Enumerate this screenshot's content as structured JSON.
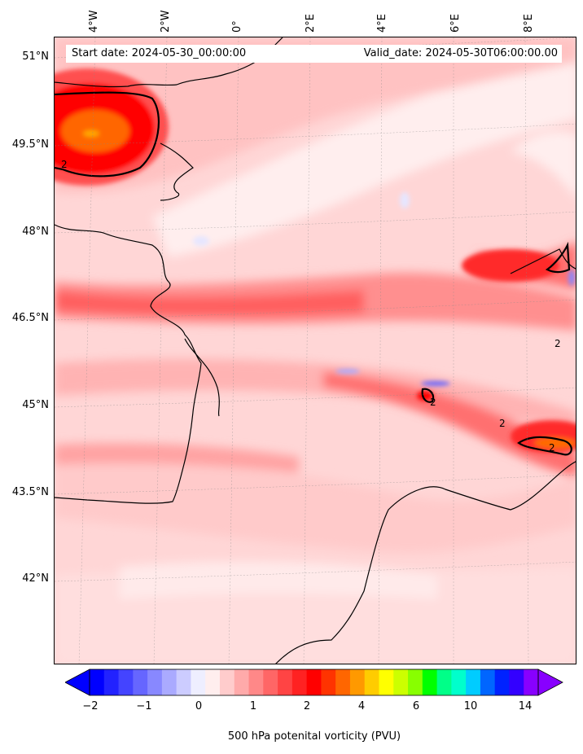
{
  "header": {
    "start_date": "Start date: 2024-05-30_00:00:00",
    "valid_date": "Valid_date: 2024-05-30T06:00:00.00"
  },
  "map": {
    "lat_labels": [
      "51°N",
      "49.5°N",
      "48°N",
      "46.5°N",
      "45°N",
      "43.5°N",
      "42°N"
    ],
    "lon_labels": [
      "4°W",
      "2°W",
      "0°",
      "2°E",
      "4°E",
      "6°E",
      "8°E"
    ],
    "contour_label": "2",
    "colors": {
      "background": "#ffe6e6",
      "light": "#ffcccc",
      "mid": "#ff9999",
      "strong": "#ff6666",
      "max": "#ff0000",
      "orange": "#ff6600",
      "negative": "#e6e6ff"
    }
  },
  "colorbar": {
    "ticks": [
      "−2",
      "−1",
      "0",
      "1",
      "2",
      "4",
      "6",
      "10",
      "14"
    ],
    "label": "500 hPa potenital vorticity (PVU)",
    "colors": [
      "#0000ff",
      "#2222ff",
      "#4444ff",
      "#6666ff",
      "#8888ff",
      "#aaaaff",
      "#ccccff",
      "#eeeeff",
      "#ffeeee",
      "#ffcccc",
      "#ffaaaa",
      "#ff8888",
      "#ff6666",
      "#ff4444",
      "#ff2222",
      "#ff0000",
      "#ff3300",
      "#ff6600",
      "#ff9900",
      "#ffcc00",
      "#ffff00",
      "#ccff00",
      "#88ff00",
      "#00ff00",
      "#00ff88",
      "#00ffcc",
      "#00ccff",
      "#0066ff",
      "#0022ff",
      "#3300ff",
      "#8800ff"
    ]
  }
}
